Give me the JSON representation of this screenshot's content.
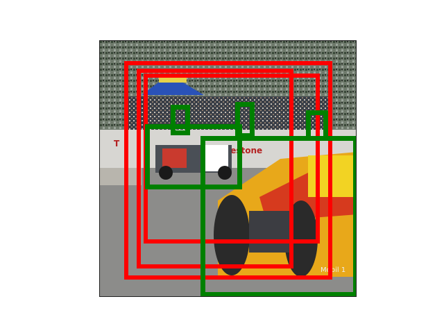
{
  "image": {
    "scene_text": [
      "Firestone"
    ],
    "car_number": "Mobil 1"
  },
  "overlay": {
    "colors": {
      "red": "#ff0000",
      "green": "#008000"
    },
    "red_box_count": 3,
    "green_box_count": 5
  }
}
